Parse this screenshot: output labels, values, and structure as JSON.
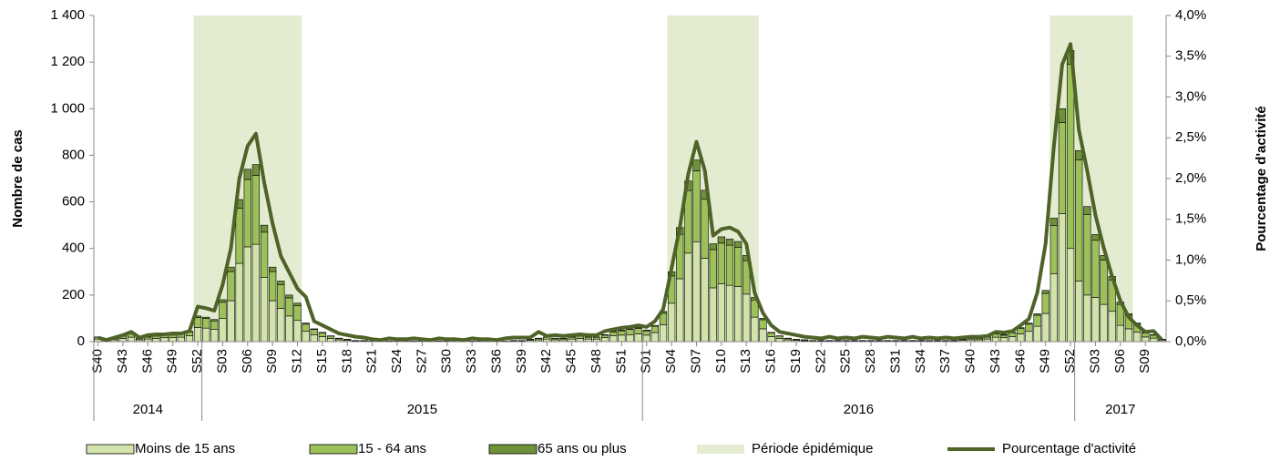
{
  "chart_data": {
    "type": "bar",
    "ylabel": "Nombre de cas",
    "y2label": "Pourcentage d'activité",
    "ylim": [
      0,
      1400
    ],
    "yticks": [
      0,
      200,
      400,
      600,
      800,
      {
        "value": 1000,
        "label": "1 000"
      },
      {
        "value": 1200,
        "label": "1 200"
      },
      {
        "value": 1400,
        "label": "1 400"
      }
    ],
    "y2lim": [
      0,
      4
    ],
    "y2ticks": [
      {
        "value": 0,
        "label": "0,0%"
      },
      {
        "value": 0.5,
        "label": "0,5%"
      },
      {
        "value": 1,
        "label": "1,0%"
      },
      {
        "value": 1.5,
        "label": "1,5%"
      },
      {
        "value": 2,
        "label": "2,0%"
      },
      {
        "value": 2.5,
        "label": "2,5%"
      },
      {
        "value": 3,
        "label": "3,0%"
      },
      {
        "value": 3.5,
        "label": "3,5%"
      },
      {
        "value": 4,
        "label": "4,0%"
      }
    ],
    "groups": [
      {
        "name": "2014",
        "count": 13
      },
      {
        "name": "2015",
        "count": 53
      },
      {
        "name": "2016",
        "count": 52
      },
      {
        "name": "2017",
        "count": 11
      }
    ],
    "periods": {
      "name": "Période épidémique",
      "color": "#e3ecd0",
      "spans": [
        [
          12,
          24
        ],
        [
          69,
          79
        ],
        [
          115,
          124
        ]
      ]
    },
    "categories": [
      "S40",
      null,
      null,
      "S43",
      null,
      null,
      "S46",
      null,
      null,
      "S49",
      null,
      null,
      "S52",
      null,
      null,
      "S03",
      null,
      null,
      "S06",
      null,
      null,
      "S09",
      null,
      null,
      "S12",
      null,
      null,
      "S15",
      null,
      null,
      "S18",
      null,
      null,
      "S21",
      null,
      null,
      "S24",
      null,
      null,
      "S27",
      null,
      null,
      "S30",
      null,
      null,
      "S33",
      null,
      null,
      "S36",
      null,
      null,
      "S39",
      null,
      null,
      "S42",
      null,
      null,
      "S45",
      null,
      null,
      "S48",
      null,
      null,
      "S51",
      null,
      null,
      "S01",
      null,
      null,
      "S04",
      null,
      null,
      "S07",
      null,
      null,
      "S10",
      null,
      null,
      "S13",
      null,
      null,
      "S16",
      null,
      null,
      "S19",
      null,
      null,
      "S22",
      null,
      null,
      "S25",
      null,
      null,
      "S28",
      null,
      null,
      "S31",
      null,
      null,
      "S34",
      null,
      null,
      "S37",
      null,
      null,
      "S40",
      null,
      null,
      "S43",
      null,
      null,
      "S46",
      null,
      null,
      "S49",
      null,
      null,
      "S52",
      null,
      null,
      "S03",
      null,
      null,
      "S06",
      null,
      null,
      "S09",
      null,
      null
    ],
    "series": [
      {
        "name": "Moins de 15 ans",
        "color": "#d3e3ac",
        "stack": true,
        "values": [
          11,
          6,
          8,
          14,
          19,
          8,
          11,
          14,
          17,
          17,
          19,
          25,
          61,
          58,
          52,
          99,
          176,
          336,
          407,
          418,
          275,
          176,
          143,
          110,
          91,
          44,
          30,
          22,
          14,
          8,
          6,
          3,
          3,
          2,
          2,
          2,
          2,
          2,
          2,
          2,
          2,
          2,
          2,
          2,
          2,
          2,
          2,
          2,
          2,
          2,
          3,
          3,
          6,
          8,
          11,
          8,
          8,
          11,
          14,
          11,
          11,
          17,
          25,
          28,
          30,
          33,
          28,
          39,
          72,
          165,
          270,
          380,
          429,
          358,
          231,
          248,
          242,
          237,
          204,
          105,
          55,
          22,
          14,
          8,
          6,
          4,
          3,
          3,
          3,
          3,
          3,
          3,
          3,
          3,
          3,
          3,
          3,
          3,
          3,
          3,
          3,
          3,
          3,
          3,
          6,
          8,
          8,
          11,
          19,
          17,
          22,
          33,
          44,
          66,
          121,
          292,
          550,
          400,
          260,
          200,
          190,
          160,
          130,
          70,
          55,
          40,
          20,
          15,
          5
        ]
      },
      {
        "name": "15 - 64 ans",
        "color": "#9cc05a",
        "stack": true,
        "values": [
          8,
          3,
          6,
          10,
          14,
          6,
          8,
          10,
          11,
          11,
          14,
          17,
          42,
          41,
          37,
          70,
          125,
          237,
          289,
          296,
          195,
          125,
          101,
          78,
          64,
          31,
          22,
          16,
          10,
          6,
          3,
          2,
          2,
          1,
          1,
          1,
          1,
          1,
          1,
          1,
          1,
          1,
          1,
          1,
          1,
          1,
          1,
          1,
          1,
          1,
          2,
          2,
          3,
          6,
          8,
          6,
          6,
          8,
          10,
          8,
          8,
          11,
          17,
          19,
          22,
          23,
          19,
          27,
          50,
          117,
          191,
          269,
          304,
          253,
          164,
          175,
          172,
          167,
          144,
          74,
          39,
          16,
          10,
          6,
          3,
          3,
          2,
          2,
          2,
          2,
          2,
          2,
          2,
          2,
          2,
          2,
          2,
          2,
          2,
          2,
          2,
          2,
          2,
          2,
          3,
          6,
          6,
          8,
          14,
          11,
          16,
          23,
          31,
          47,
          86,
          206,
          390,
          790,
          520,
          345,
          245,
          190,
          135,
          90,
          58,
          35,
          17,
          13,
          4
        ]
      },
      {
        "name": "65 ans ou plus",
        "color": "#6f913a",
        "stack": true,
        "values": [
          1,
          1,
          1,
          1,
          2,
          1,
          1,
          1,
          2,
          2,
          2,
          3,
          7,
          6,
          6,
          11,
          19,
          37,
          44,
          46,
          30,
          19,
          16,
          12,
          10,
          5,
          3,
          2,
          1,
          1,
          1,
          0,
          0,
          0,
          0,
          0,
          0,
          0,
          0,
          0,
          0,
          0,
          0,
          0,
          0,
          0,
          0,
          0,
          0,
          0,
          0,
          0,
          1,
          1,
          1,
          1,
          1,
          1,
          1,
          1,
          1,
          2,
          3,
          3,
          3,
          4,
          3,
          4,
          8,
          18,
          29,
          41,
          47,
          39,
          25,
          27,
          26,
          26,
          22,
          11,
          6,
          2,
          1,
          1,
          1,
          1,
          0,
          0,
          0,
          0,
          0,
          0,
          0,
          0,
          0,
          0,
          0,
          0,
          0,
          0,
          0,
          0,
          0,
          0,
          1,
          1,
          1,
          1,
          2,
          2,
          2,
          4,
          5,
          7,
          13,
          32,
          60,
          60,
          40,
          35,
          25,
          20,
          15,
          10,
          7,
          5,
          3,
          2,
          1
        ]
      },
      {
        "name": "Pourcentage d'activité",
        "color": "#4f6228",
        "axis": "y2",
        "type": "line",
        "values": [
          0.05,
          0.02,
          0.05,
          0.08,
          0.12,
          0.05,
          0.08,
          0.09,
          0.09,
          0.1,
          0.1,
          0.13,
          0.43,
          0.41,
          0.38,
          0.7,
          1.15,
          2.0,
          2.4,
          2.55,
          1.95,
          1.45,
          1.05,
          0.85,
          0.65,
          0.55,
          0.25,
          0.2,
          0.15,
          0.1,
          0.08,
          0.06,
          0.05,
          0.03,
          0.02,
          0.04,
          0.03,
          0.03,
          0.04,
          0.03,
          0.02,
          0.04,
          0.03,
          0.03,
          0.02,
          0.04,
          0.03,
          0.03,
          0.02,
          0.04,
          0.05,
          0.05,
          0.05,
          0.12,
          0.07,
          0.08,
          0.07,
          0.08,
          0.09,
          0.08,
          0.08,
          0.13,
          0.15,
          0.17,
          0.18,
          0.2,
          0.18,
          0.25,
          0.4,
          0.9,
          1.4,
          2.05,
          2.45,
          2.1,
          1.3,
          1.38,
          1.4,
          1.35,
          1.2,
          0.6,
          0.35,
          0.2,
          0.12,
          0.1,
          0.08,
          0.06,
          0.05,
          0.04,
          0.06,
          0.04,
          0.05,
          0.04,
          0.06,
          0.05,
          0.04,
          0.06,
          0.05,
          0.04,
          0.06,
          0.04,
          0.05,
          0.04,
          0.05,
          0.04,
          0.05,
          0.06,
          0.06,
          0.07,
          0.12,
          0.11,
          0.13,
          0.2,
          0.28,
          0.6,
          1.2,
          2.4,
          3.4,
          3.65,
          2.6,
          2.1,
          1.55,
          1.15,
          0.8,
          0.5,
          0.3,
          0.2,
          0.12,
          0.13,
          0.02
        ]
      }
    ]
  }
}
